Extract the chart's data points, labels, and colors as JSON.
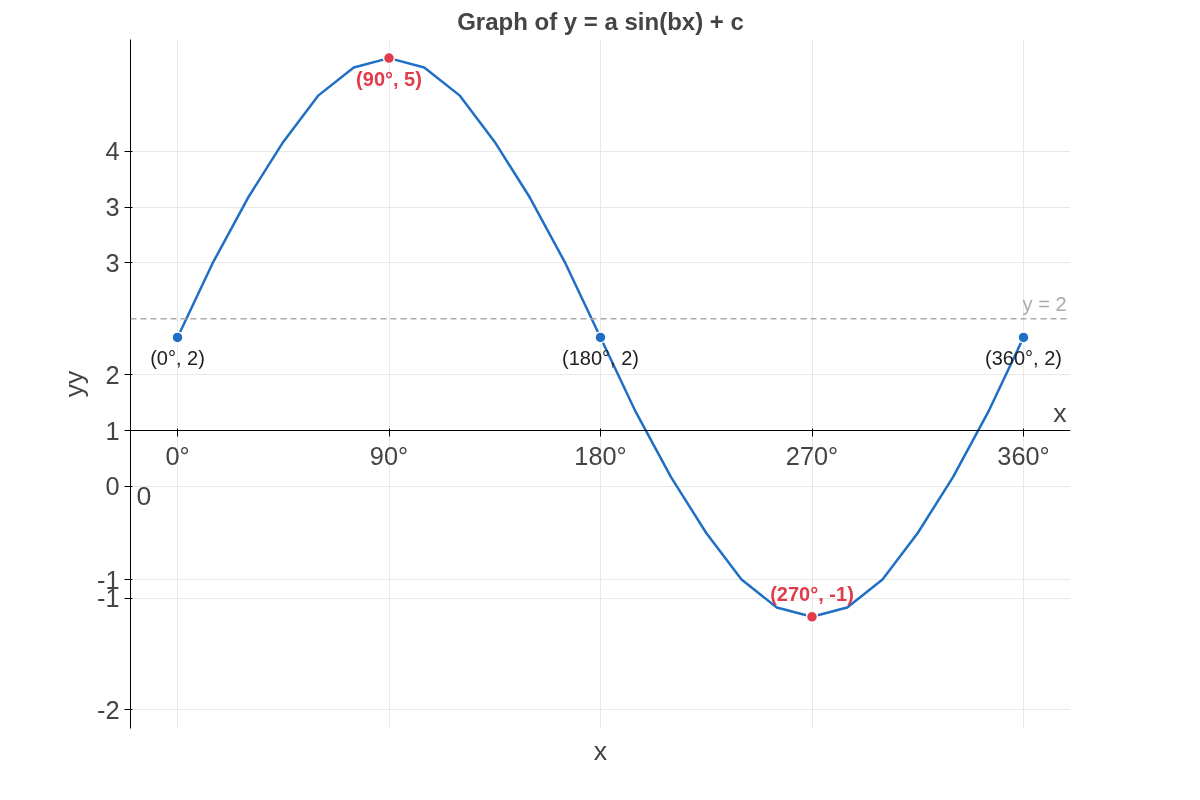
{
  "chart_data": {
    "type": "line",
    "title": "Graph of y = a sin(bx) + c",
    "xlabel": "x",
    "ylabel": "yy",
    "xlim": [
      -20,
      380
    ],
    "ylim": [
      -2.2,
      5.2
    ],
    "xticks": [
      {
        "value": 0,
        "label": "0°"
      },
      {
        "value": 90,
        "label": "90°"
      },
      {
        "value": 180,
        "label": "180°"
      },
      {
        "value": 270,
        "label": "270°"
      },
      {
        "value": 360,
        "label": "360°"
      }
    ],
    "yticks": [
      {
        "value": 4,
        "label": "4"
      },
      {
        "value": 3.4,
        "label": "3"
      },
      {
        "value": 2.8,
        "label": "3"
      },
      {
        "value": 1.6,
        "label": "2"
      },
      {
        "value": 1,
        "label": "1"
      },
      {
        "value": 0.4,
        "label": "0"
      },
      {
        "value": -0.6,
        "label": "-1"
      },
      {
        "value": -0.8,
        "label": "-1"
      },
      {
        "value": -2,
        "label": "-2"
      }
    ],
    "grid": true,
    "series": [
      {
        "color": "#1f6fc5",
        "x": [
          0,
          15,
          30,
          45,
          60,
          75,
          90,
          105,
          120,
          135,
          150,
          165,
          180,
          195,
          210,
          225,
          240,
          255,
          270,
          285,
          300,
          315,
          330,
          345,
          360
        ],
        "values": [
          2,
          2.8,
          3.5,
          4.1,
          4.6,
          4.9,
          5,
          4.9,
          4.6,
          4.1,
          3.5,
          2.8,
          2,
          1.2,
          0.5,
          -0.1,
          -0.6,
          -0.9,
          -1,
          -0.9,
          -0.6,
          -0.1,
          0.5,
          1.2,
          2
        ]
      },
      {
        "type": "scatter",
        "color": "#1f6fc5",
        "x": [
          0,
          180,
          360
        ],
        "values": [
          2,
          2,
          2
        ]
      },
      {
        "type": "scatter",
        "color": "#e03c4a",
        "x": [
          90,
          270
        ],
        "values": [
          5,
          -1
        ]
      }
    ],
    "ref_lines": [
      {
        "axis": "y",
        "value": 2.2,
        "label": "y = 2",
        "color": "#aaaaaa",
        "line_style": "dashed"
      }
    ],
    "annotations": [
      {
        "text": "(0°, 2)",
        "x": 0,
        "y": 2
      },
      {
        "text": "(90°, 5)",
        "x": 90,
        "y": 5
      },
      {
        "text": "(180°, 2)",
        "x": 180,
        "y": 2
      },
      {
        "text": "(270°, -1)",
        "x": 270,
        "y": -1
      },
      {
        "text": "(360°, 2)",
        "x": 360,
        "y": 2
      },
      "x",
      "0"
    ]
  }
}
